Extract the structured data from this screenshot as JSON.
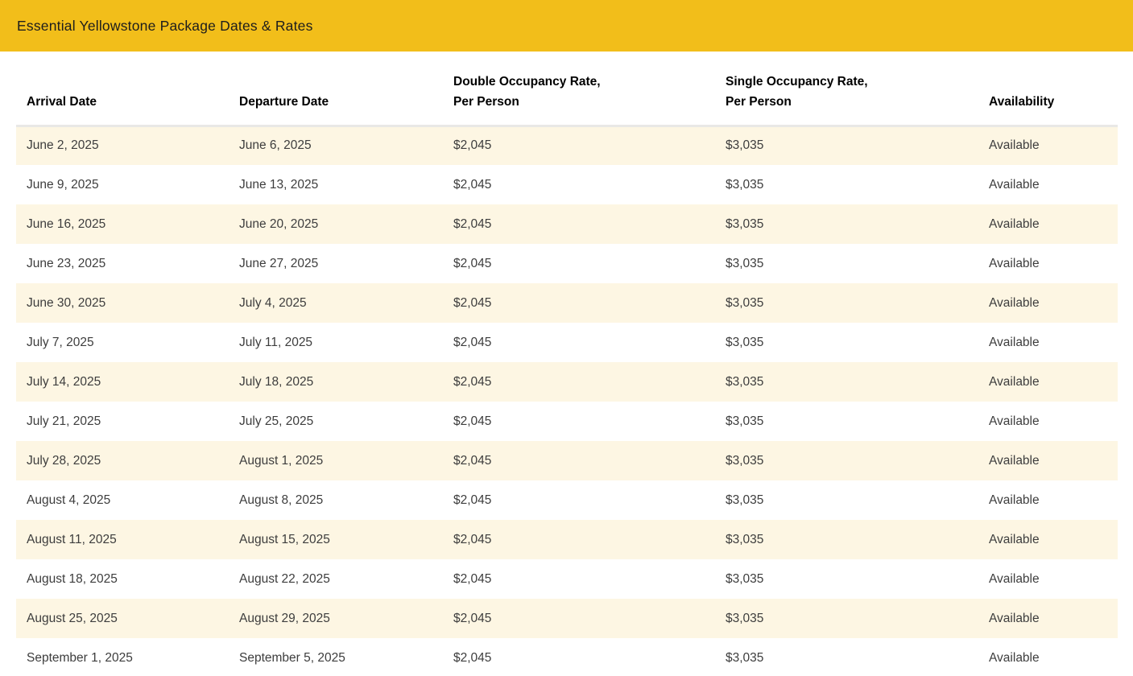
{
  "title_bar": {
    "title": "Essential Yellowstone Package Dates & Rates"
  },
  "table": {
    "columns": [
      {
        "label": "Arrival Date"
      },
      {
        "label": "Departure Date"
      },
      {
        "label": "Double Occupancy Rate,\nPer Person"
      },
      {
        "label": "Single Occupancy Rate,\nPer Person"
      },
      {
        "label": "Availability"
      }
    ],
    "rows": [
      {
        "arrival": "June 2, 2025",
        "departure": "June 6, 2025",
        "double_rate": "$2,045",
        "single_rate": "$3,035",
        "availability": "Available"
      },
      {
        "arrival": "June 9, 2025",
        "departure": "June 13, 2025",
        "double_rate": "$2,045",
        "single_rate": "$3,035",
        "availability": "Available"
      },
      {
        "arrival": "June 16, 2025",
        "departure": "June 20, 2025",
        "double_rate": "$2,045",
        "single_rate": "$3,035",
        "availability": "Available"
      },
      {
        "arrival": "June 23, 2025",
        "departure": "June 27, 2025",
        "double_rate": "$2,045",
        "single_rate": "$3,035",
        "availability": "Available"
      },
      {
        "arrival": "June 30, 2025",
        "departure": "July 4, 2025",
        "double_rate": "$2,045",
        "single_rate": "$3,035",
        "availability": "Available"
      },
      {
        "arrival": "July 7, 2025",
        "departure": "July 11, 2025",
        "double_rate": "$2,045",
        "single_rate": "$3,035",
        "availability": "Available"
      },
      {
        "arrival": "July 14, 2025",
        "departure": "July 18, 2025",
        "double_rate": "$2,045",
        "single_rate": "$3,035",
        "availability": "Available"
      },
      {
        "arrival": "July 21, 2025",
        "departure": "July 25, 2025",
        "double_rate": "$2,045",
        "single_rate": "$3,035",
        "availability": "Available"
      },
      {
        "arrival": "July 28, 2025",
        "departure": "August 1, 2025",
        "double_rate": "$2,045",
        "single_rate": "$3,035",
        "availability": "Available"
      },
      {
        "arrival": "August 4, 2025",
        "departure": "August 8, 2025",
        "double_rate": "$2,045",
        "single_rate": "$3,035",
        "availability": "Available"
      },
      {
        "arrival": "August 11, 2025",
        "departure": "August 15, 2025",
        "double_rate": "$2,045",
        "single_rate": "$3,035",
        "availability": "Available"
      },
      {
        "arrival": "August 18, 2025",
        "departure": "August 22, 2025",
        "double_rate": "$2,045",
        "single_rate": "$3,035",
        "availability": "Available"
      },
      {
        "arrival": "August 25, 2025",
        "departure": "August 29, 2025",
        "double_rate": "$2,045",
        "single_rate": "$3,035",
        "availability": "Available"
      },
      {
        "arrival": "September 1, 2025",
        "departure": "September 5, 2025",
        "double_rate": "$2,045",
        "single_rate": "$3,035",
        "availability": "Available"
      }
    ]
  },
  "colors": {
    "accent_yellow": "#f2be1a",
    "row_alternate_cream": "#fdf6e3",
    "header_text": "#000000",
    "cell_text": "#3d3d3d",
    "header_border": "#e9e8e6"
  }
}
